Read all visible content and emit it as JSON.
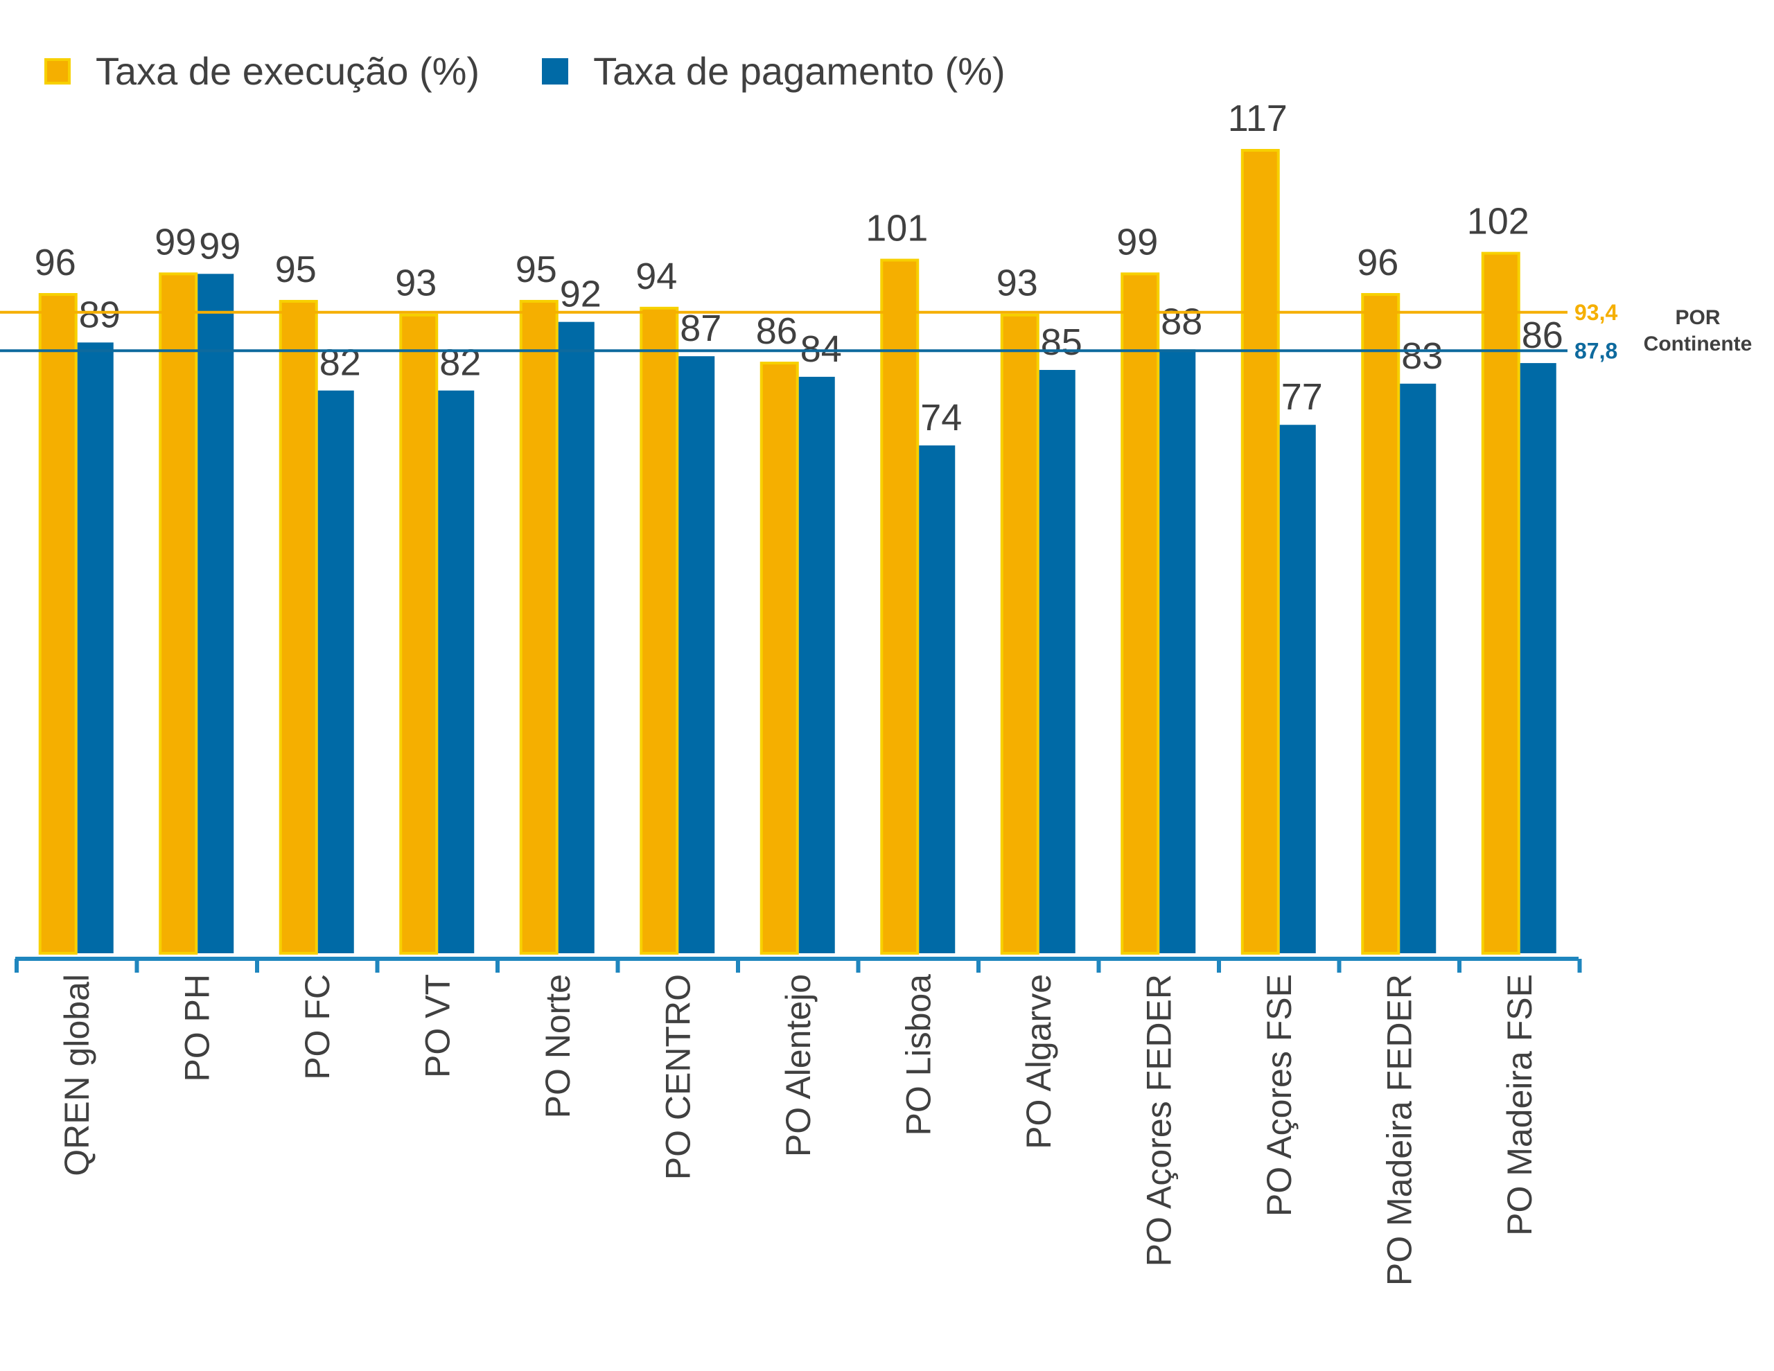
{
  "legend": [
    {
      "label": "Taxa de execução (%)",
      "color": "#F5AF00"
    },
    {
      "label": "Taxa de pagamento (%)",
      "color": "#006AA6"
    }
  ],
  "reference": {
    "note_line1": "POR",
    "note_line2": "Continente"
  },
  "chart_data": {
    "type": "bar",
    "categories": [
      "QREN global",
      "PO PH",
      "PO FC",
      "PO VT",
      "PO Norte",
      "PO CENTRO",
      "PO Alentejo",
      "PO Lisboa",
      "PO Algarve",
      "PO Açores FEDER",
      "PO Açores FSE",
      "PO Madeira FEDER",
      "PO Madeira FSE"
    ],
    "series": [
      {
        "name": "Taxa de execução (%)",
        "color": "#F5AF00",
        "edge": "#F7D000",
        "values": [
          96,
          99,
          95,
          93,
          95,
          94,
          86,
          101,
          93,
          99,
          117,
          96,
          102
        ]
      },
      {
        "name": "Taxa de pagamento (%)",
        "color": "#006AA6",
        "values": [
          89,
          99,
          82,
          82,
          92,
          87,
          84,
          74,
          85,
          88,
          77,
          83,
          86
        ]
      }
    ],
    "reference_lines": [
      {
        "value": 93.4,
        "label": "93,4",
        "color": "#F5AF00"
      },
      {
        "value": 87.8,
        "label": "87,8",
        "color": "#0E6A9E"
      }
    ],
    "ylim": [
      0,
      117
    ],
    "grid": false,
    "legend_position": "top-left"
  }
}
